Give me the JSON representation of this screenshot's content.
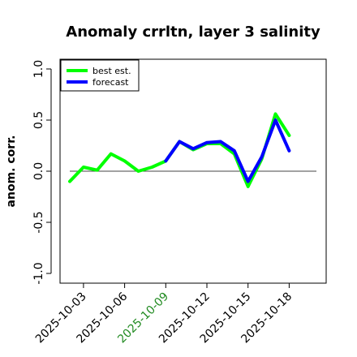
{
  "chart_data": {
    "type": "line",
    "title": "Anomaly crrltn, layer 3 salinity",
    "xlabel": "",
    "ylabel": "anom. corr.",
    "ylim": [
      -1.0,
      1.0
    ],
    "yticks": [
      "-1.0",
      "-0.5",
      "0.0",
      "0.5",
      "1.0"
    ],
    "reference_line": 0.0,
    "x_tick_labels": [
      {
        "label": "2025-10-03",
        "day": 3,
        "color": "#000000"
      },
      {
        "label": "2025-10-06",
        "day": 6,
        "color": "#000000"
      },
      {
        "label": "2025-10-09",
        "day": 9,
        "color": "#228B22"
      },
      {
        "label": "2025-10-12",
        "day": 12,
        "color": "#000000"
      },
      {
        "label": "2025-10-15",
        "day": 15,
        "color": "#000000"
      },
      {
        "label": "2025-10-18",
        "day": 18,
        "color": "#000000"
      }
    ],
    "legend_position": "top-left",
    "series": [
      {
        "name": "best est.",
        "color": "#00ff00",
        "x": [
          "2025-10-02",
          "2025-10-03",
          "2025-10-04",
          "2025-10-05",
          "2025-10-06",
          "2025-10-07",
          "2025-10-08",
          "2025-10-09",
          "2025-10-10",
          "2025-10-11",
          "2025-10-12",
          "2025-10-13",
          "2025-10-14",
          "2025-10-15",
          "2025-10-16",
          "2025-10-17",
          "2025-10-18"
        ],
        "values": [
          -0.1,
          0.04,
          0.01,
          0.17,
          0.1,
          0.0,
          0.04,
          0.1,
          0.29,
          0.21,
          0.27,
          0.27,
          0.17,
          -0.15,
          0.12,
          0.56,
          0.35
        ]
      },
      {
        "name": "forecast",
        "color": "#0000ff",
        "x": [
          "2025-10-09",
          "2025-10-10",
          "2025-10-11",
          "2025-10-12",
          "2025-10-13",
          "2025-10-14",
          "2025-10-15",
          "2025-10-16",
          "2025-10-17",
          "2025-10-18"
        ],
        "values": [
          0.1,
          0.29,
          0.22,
          0.28,
          0.29,
          0.2,
          -0.1,
          0.14,
          0.5,
          0.2
        ]
      }
    ]
  }
}
